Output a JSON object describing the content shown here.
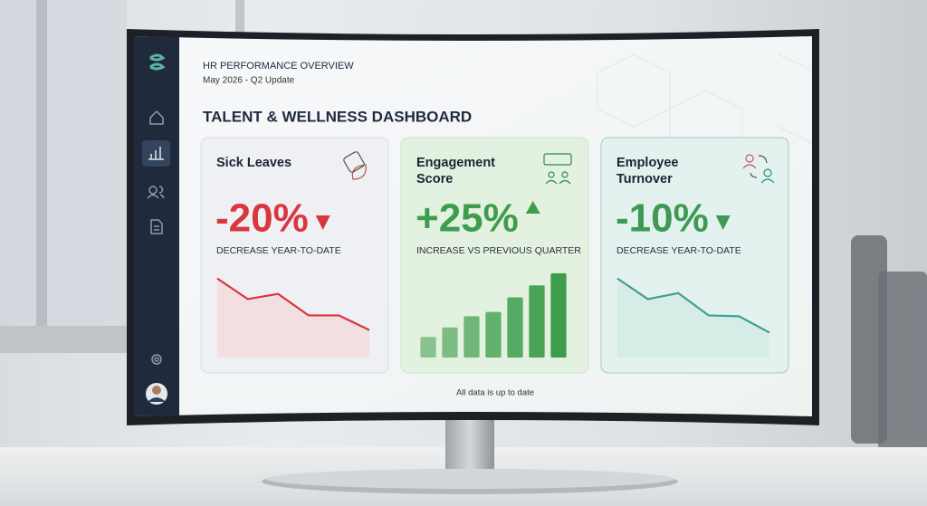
{
  "header": {
    "title": "HR PERFORMANCE OVERVIEW",
    "subtitle": "May 2026 - Q2 Update"
  },
  "dashboard_title": "TALENT & WELLNESS DASHBOARD",
  "cards": [
    {
      "title": [
        "Sick Leaves"
      ],
      "value": "-20%",
      "caption": "DECREASE YEAR-TO-DATE",
      "trend": {
        "type": "line",
        "direction": "down",
        "color": "#d9363e",
        "fill": "#f3dfe2",
        "value_color": "#d9363e",
        "ylim": [
          0,
          100
        ],
        "values": [
          92,
          68,
          74,
          49,
          49,
          32
        ]
      }
    },
    {
      "title": [
        "Engagement",
        "Score"
      ],
      "value": "+25%",
      "caption": "INCREASE VS PREVIOUS QUARTER",
      "trend": {
        "type": "bar",
        "direction": "up",
        "color": "#3e9d4c",
        "value_color": "#3e9d4c",
        "ylim": [
          0,
          100
        ],
        "values": [
          24,
          35,
          48,
          53,
          70,
          84,
          98
        ]
      }
    },
    {
      "title": [
        "Employee",
        "Turnover"
      ],
      "value": "-10%",
      "caption": "DECREASE YEAR-TO-DATE",
      "trend": {
        "type": "line",
        "direction": "down",
        "color": "#3f9f94",
        "fill": "#d6ece6",
        "value_color": "#3e9a52",
        "ylim": [
          0,
          100
        ],
        "values": [
          92,
          68,
          75,
          49,
          48,
          29
        ]
      }
    }
  ],
  "footer": "All data is up to date"
}
